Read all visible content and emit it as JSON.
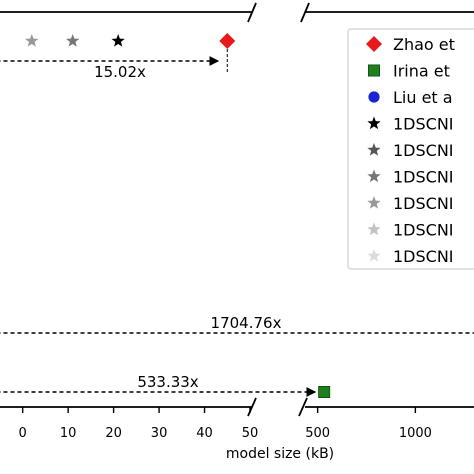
{
  "chart_data": {
    "type": "scatter",
    "title": "",
    "xlabel": "model size (kB)",
    "ylabel": "",
    "x_axis": {
      "broken": true,
      "segments": [
        {
          "range": [
            -4,
            50
          ],
          "ticks": [
            10,
            20,
            30,
            40,
            50
          ]
        },
        {
          "range": [
            420,
            1300
          ],
          "ticks": [
            500,
            1000
          ]
        }
      ],
      "tick_labels": [
        "0",
        "10",
        "20",
        "30",
        "40",
        "50",
        "500",
        "1000"
      ]
    },
    "series": [
      {
        "name": "Zhao et",
        "marker": "diamond",
        "color": "#e8191c",
        "points": [
          {
            "x": 45,
            "row": "top"
          }
        ]
      },
      {
        "name": "Irina et",
        "marker": "square",
        "color": "#1f7f1f",
        "points": [
          {
            "x": 533.33,
            "row": "bottom"
          }
        ]
      },
      {
        "name": "Liu et a",
        "marker": "circle",
        "color": "#1b24d4",
        "points": []
      },
      {
        "name": "1DSCNI",
        "marker": "star",
        "color": "#000000",
        "points": [
          {
            "x": 21,
            "row": "top"
          }
        ]
      },
      {
        "name": "1DSCNI",
        "marker": "star",
        "color": "#555555",
        "points": []
      },
      {
        "name": "1DSCNI",
        "marker": "star",
        "color": "#777777",
        "points": [
          {
            "x": 11,
            "row": "top"
          }
        ]
      },
      {
        "name": "1DSCNI",
        "marker": "star",
        "color": "#999999",
        "points": [
          {
            "x": 2,
            "row": "top"
          }
        ]
      },
      {
        "name": "1DSCNI",
        "marker": "star",
        "color": "#c2c2c2",
        "points": []
      },
      {
        "name": "1DSCNI",
        "marker": "star",
        "color": "#dcdcdc",
        "points": []
      }
    ],
    "annotations": [
      {
        "label": "15.02x",
        "from_x": -4,
        "to_x": 45,
        "row": "top"
      },
      {
        "label": "1704.76x",
        "from_x": -4,
        "to_x": 1300,
        "row": "middle"
      },
      {
        "label": "533.33x",
        "from_x": -4,
        "to_x": 533.33,
        "row": "bottom"
      }
    ],
    "legend_placement": "top-right",
    "grid": false
  }
}
